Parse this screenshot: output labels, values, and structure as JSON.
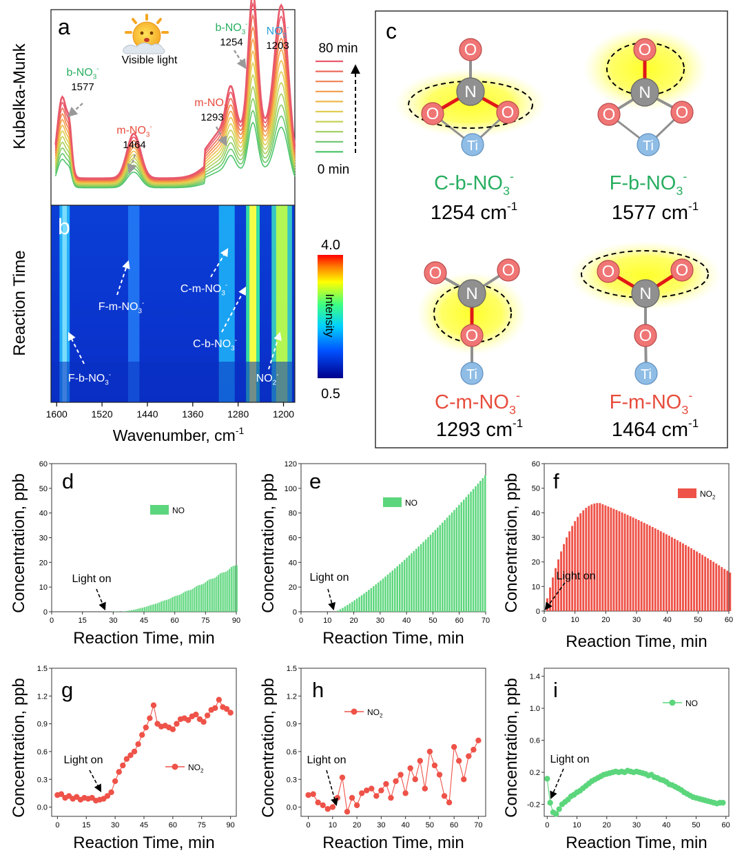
{
  "colors": {
    "green": "#27ae60",
    "red": "#e74c3c",
    "blue": "#2e9fd6",
    "bar_green": "#5cd67c",
    "bar_red": "#ee5248",
    "atom_o": "#f07575",
    "atom_n": "#909090",
    "atom_ti": "#8fbde6"
  },
  "panels": {
    "a": {
      "letter": "a",
      "ylabel": "Kubelka-Munk",
      "sun_label": "Visible light",
      "time_start": "0 min",
      "time_end": "80 min",
      "annotations": [
        {
          "species": "b-NO",
          "sub": "3",
          "sup": "-",
          "wavenumber": "1577",
          "color": "green"
        },
        {
          "species": "m-NO",
          "sub": "3",
          "sup": "-",
          "wavenumber": "1464",
          "color": "red"
        },
        {
          "species": "m-NO",
          "sub": "3",
          "sup": "-",
          "wavenumber": "1293",
          "color": "red"
        },
        {
          "species": "b-NO",
          "sub": "3",
          "sup": "-",
          "wavenumber": "1254",
          "color": "green"
        },
        {
          "species": "NO",
          "sub": "2",
          "sup": "-",
          "wavenumber": "1203",
          "color": "blue"
        }
      ]
    },
    "b": {
      "letter": "b",
      "ylabel": "Reaction Time",
      "xlabel": "Wavenumber, cm",
      "xlabel_sup": "-1",
      "xticks": [
        "1600",
        "1520",
        "1440",
        "1360",
        "1280",
        "1200"
      ],
      "colorbar_max": "4.0",
      "colorbar_min": "0.5",
      "colorbar_label": "Intensity",
      "labels": [
        "F-b-NO",
        "F-m-NO",
        "C-m-NO",
        "C-b-NO",
        "NO"
      ]
    },
    "c": {
      "letter": "c",
      "structures": [
        {
          "name": "C-b-NO",
          "sub": "3",
          "sup": "-",
          "freq": "1254 cm",
          "freq_sup": "-1",
          "color": "green"
        },
        {
          "name": "F-b-NO",
          "sub": "3",
          "sup": "-",
          "freq": "1577 cm",
          "freq_sup": "-1",
          "color": "green"
        },
        {
          "name": "C-m-NO",
          "sub": "3",
          "sup": "-",
          "freq": "1293 cm",
          "freq_sup": "-1",
          "color": "red"
        },
        {
          "name": "F-m-NO",
          "sub": "3",
          "sup": "-",
          "freq": "1464 cm",
          "freq_sup": "-1",
          "color": "red"
        }
      ],
      "atoms": {
        "o": "O",
        "n": "N",
        "ti": "Ti"
      }
    },
    "common": {
      "ylabel": "Concentration, ppb",
      "xlabel": "Reaction Time, min",
      "light_on": "Light on"
    }
  },
  "chart_data": [
    {
      "panel": "d",
      "type": "bar",
      "series": [
        {
          "name": "NO",
          "color": "bar_green"
        }
      ],
      "xlim": [
        0,
        90
      ],
      "ylim": [
        0,
        60
      ],
      "xticks": [
        0,
        15,
        30,
        45,
        60,
        75,
        90
      ],
      "yticks": [
        0,
        10,
        20,
        30,
        40,
        50,
        60
      ],
      "x_range": [
        30,
        90
      ],
      "shape": "sigmoid",
      "x_onset": 33,
      "y_end": 19,
      "light_on_x": 28
    },
    {
      "panel": "e",
      "type": "bar",
      "series": [
        {
          "name": "NO",
          "color": "bar_green"
        }
      ],
      "xlim": [
        0,
        70
      ],
      "ylim": [
        0,
        120
      ],
      "xticks": [
        0,
        10,
        20,
        30,
        40,
        50,
        60,
        70
      ],
      "yticks": [
        0,
        20,
        40,
        60,
        80,
        100,
        120
      ],
      "x_range": [
        14,
        70
      ],
      "shape": "rise",
      "y_start": 1,
      "y_end": 111,
      "light_on_x": 12
    },
    {
      "panel": "f",
      "type": "bar",
      "series": [
        {
          "name": "NO2",
          "color": "bar_red"
        }
      ],
      "xlim": [
        0,
        60
      ],
      "ylim": [
        0,
        60
      ],
      "xticks": [
        0,
        10,
        20,
        30,
        40,
        50,
        60
      ],
      "yticks": [
        0,
        10,
        20,
        30,
        40,
        50,
        60
      ],
      "x_range": [
        1,
        60
      ],
      "shape": "peak",
      "x_peak": 18,
      "y_peak": 44,
      "y_end": 16,
      "light_on_x": 0
    },
    {
      "panel": "g",
      "type": "line",
      "series": [
        {
          "name": "NO2",
          "color": "bar_red"
        }
      ],
      "xlim": [
        -3,
        93
      ],
      "ylim": [
        -0.1,
        1.5
      ],
      "xticks": [
        0,
        15,
        30,
        45,
        60,
        75,
        90
      ],
      "yticks": [
        0.0,
        0.3,
        0.6,
        0.9,
        1.2,
        1.5
      ],
      "x": [
        0,
        2,
        4,
        6,
        8,
        10,
        12,
        14,
        16,
        18,
        20,
        22,
        24,
        26,
        28,
        30,
        32,
        34,
        36,
        38,
        40,
        42,
        44,
        46,
        48,
        50,
        52,
        54,
        56,
        58,
        60,
        62,
        64,
        66,
        68,
        70,
        72,
        74,
        76,
        78,
        80,
        82,
        84,
        86,
        88,
        90
      ],
      "y": [
        0.13,
        0.14,
        0.1,
        0.12,
        0.09,
        0.11,
        0.08,
        0.1,
        0.09,
        0.1,
        0.07,
        0.08,
        0.09,
        0.12,
        0.16,
        0.28,
        0.38,
        0.45,
        0.52,
        0.56,
        0.6,
        0.68,
        0.78,
        0.86,
        0.96,
        1.1,
        0.9,
        0.87,
        0.88,
        0.86,
        0.84,
        0.9,
        0.95,
        0.96,
        0.94,
        0.98,
        1.0,
        0.95,
        0.92,
        0.99,
        1.05,
        1.07,
        1.16,
        1.08,
        1.06,
        1.02
      ],
      "light_on_x": 22
    },
    {
      "panel": "h",
      "type": "line",
      "series": [
        {
          "name": "NO2",
          "color": "bar_red"
        }
      ],
      "xlim": [
        -3,
        73
      ],
      "ylim": [
        -0.1,
        1.5
      ],
      "xticks": [
        0,
        10,
        20,
        30,
        40,
        50,
        60,
        70
      ],
      "yticks": [
        0.0,
        0.3,
        0.6,
        0.9,
        1.2,
        1.5
      ],
      "x": [
        0,
        2,
        4,
        6,
        8,
        10,
        12,
        14,
        16,
        18,
        20,
        22,
        24,
        26,
        28,
        30,
        32,
        34,
        36,
        38,
        40,
        42,
        44,
        46,
        48,
        50,
        52,
        54,
        56,
        58,
        60,
        62,
        64,
        66,
        68,
        70
      ],
      "y": [
        0.13,
        0.14,
        0.05,
        0.02,
        -0.02,
        0.0,
        0.1,
        0.32,
        -0.05,
        0.1,
        0.02,
        0.15,
        0.18,
        0.2,
        0.12,
        0.18,
        0.25,
        0.1,
        0.28,
        0.35,
        0.15,
        0.42,
        0.3,
        0.5,
        0.2,
        0.6,
        0.45,
        0.35,
        0.12,
        0.05,
        0.65,
        0.5,
        0.3,
        0.55,
        0.62,
        0.72
      ],
      "light_on_x": 12
    },
    {
      "panel": "i",
      "type": "line",
      "series": [
        {
          "name": "NO",
          "color": "bar_green"
        }
      ],
      "xlim": [
        -1,
        61
      ],
      "ylim": [
        -0.35,
        1.5
      ],
      "xticks": [
        0,
        10,
        20,
        30,
        40,
        50,
        60
      ],
      "yticks": [
        -0.2,
        0.2,
        0.6,
        1.0,
        1.4
      ],
      "x": [
        0,
        1,
        2,
        3,
        4,
        5,
        6,
        7,
        8,
        9,
        10,
        11,
        12,
        13,
        14,
        15,
        16,
        17,
        18,
        19,
        20,
        21,
        22,
        23,
        24,
        25,
        26,
        27,
        28,
        29,
        30,
        31,
        32,
        33,
        34,
        35,
        36,
        37,
        38,
        39,
        40,
        41,
        42,
        43,
        44,
        45,
        46,
        47,
        48,
        49,
        50,
        51,
        52,
        53,
        54,
        55,
        56,
        57,
        58,
        59
      ],
      "y": [
        0.12,
        -0.18,
        -0.3,
        -0.32,
        -0.26,
        -0.2,
        -0.17,
        -0.14,
        -0.1,
        -0.08,
        -0.05,
        -0.03,
        0.0,
        0.03,
        0.06,
        0.09,
        0.11,
        0.13,
        0.15,
        0.17,
        0.18,
        0.19,
        0.2,
        0.21,
        0.2,
        0.21,
        0.2,
        0.22,
        0.21,
        0.2,
        0.21,
        0.2,
        0.19,
        0.18,
        0.16,
        0.17,
        0.14,
        0.13,
        0.11,
        0.1,
        0.08,
        0.05,
        0.04,
        0.02,
        0.0,
        -0.02,
        -0.05,
        -0.07,
        -0.09,
        -0.11,
        -0.12,
        -0.13,
        -0.14,
        -0.15,
        -0.16,
        -0.17,
        -0.18,
        -0.19,
        -0.18,
        -0.18
      ],
      "light_on_x": 0
    }
  ]
}
